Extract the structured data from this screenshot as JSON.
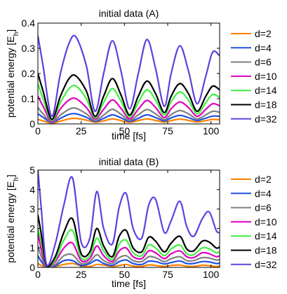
{
  "chart_data": [
    {
      "type": "line",
      "title": "initial data (A)",
      "xlabel": "time [fs]",
      "ylabel": "potential energy [E_h]",
      "xlim": [
        0,
        105
      ],
      "ylim": [
        0,
        0.4
      ],
      "xticks": [
        0,
        25,
        50,
        75,
        100
      ],
      "yticks": [
        0,
        0.1,
        0.2,
        0.3,
        0.4
      ],
      "ytick_labels": [
        "0",
        "0.1",
        "0.2",
        "0.3",
        "0.4"
      ],
      "grid": false,
      "legend_position": "right",
      "series": [
        {
          "name": "d=2",
          "color": "#ff8000",
          "x": [
            0,
            3,
            8,
            13,
            18,
            22,
            28,
            33,
            38,
            43,
            48,
            53,
            58,
            63,
            68,
            73,
            77,
            82,
            87,
            92,
            97,
            101,
            105
          ],
          "values": [
            0.018,
            0.012,
            0.003,
            0.011,
            0.02,
            0.022,
            0.015,
            0.007,
            0.012,
            0.02,
            0.013,
            0.006,
            0.013,
            0.02,
            0.014,
            0.007,
            0.013,
            0.019,
            0.014,
            0.008,
            0.013,
            0.018,
            0.016
          ]
        },
        {
          "name": "d=4",
          "color": "#2050e0",
          "x": [
            0,
            3,
            8,
            13,
            18,
            22,
            28,
            33,
            38,
            43,
            48,
            53,
            58,
            63,
            68,
            73,
            77,
            82,
            87,
            92,
            97,
            101,
            105
          ],
          "values": [
            0.04,
            0.026,
            0.005,
            0.022,
            0.038,
            0.04,
            0.026,
            0.01,
            0.022,
            0.036,
            0.024,
            0.01,
            0.022,
            0.036,
            0.025,
            0.012,
            0.024,
            0.034,
            0.025,
            0.014,
            0.023,
            0.031,
            0.03
          ]
        },
        {
          "name": "d=6",
          "color": "#808080",
          "x": [
            0,
            3,
            8,
            13,
            18,
            22,
            28,
            33,
            38,
            43,
            48,
            53,
            58,
            63,
            68,
            73,
            77,
            82,
            87,
            92,
            97,
            101,
            105
          ],
          "values": [
            0.065,
            0.04,
            0.007,
            0.035,
            0.058,
            0.062,
            0.04,
            0.013,
            0.035,
            0.058,
            0.038,
            0.014,
            0.036,
            0.057,
            0.04,
            0.017,
            0.037,
            0.053,
            0.04,
            0.02,
            0.036,
            0.05,
            0.046
          ]
        },
        {
          "name": "d=10",
          "color": "#e000c0",
          "x": [
            0,
            3,
            8,
            13,
            18,
            22,
            28,
            33,
            38,
            43,
            48,
            53,
            58,
            63,
            68,
            73,
            77,
            82,
            87,
            92,
            97,
            101,
            105
          ],
          "values": [
            0.11,
            0.07,
            0.01,
            0.06,
            0.095,
            0.1,
            0.065,
            0.02,
            0.058,
            0.095,
            0.062,
            0.02,
            0.058,
            0.093,
            0.065,
            0.025,
            0.06,
            0.087,
            0.065,
            0.03,
            0.058,
            0.08,
            0.072
          ]
        },
        {
          "name": "d=14",
          "color": "#40f040",
          "x": [
            0,
            3,
            8,
            13,
            18,
            22,
            28,
            33,
            38,
            43,
            48,
            53,
            58,
            63,
            68,
            73,
            77,
            82,
            87,
            92,
            97,
            101,
            105
          ],
          "values": [
            0.16,
            0.1,
            0.014,
            0.085,
            0.14,
            0.15,
            0.1,
            0.025,
            0.085,
            0.14,
            0.09,
            0.028,
            0.085,
            0.135,
            0.095,
            0.035,
            0.088,
            0.127,
            0.094,
            0.04,
            0.085,
            0.117,
            0.105
          ]
        },
        {
          "name": "d=18",
          "color": "#000000",
          "x": [
            0,
            3,
            8,
            13,
            18,
            22,
            28,
            33,
            38,
            43,
            48,
            53,
            58,
            63,
            68,
            73,
            77,
            82,
            87,
            92,
            97,
            101,
            105
          ],
          "values": [
            0.2,
            0.13,
            0.018,
            0.11,
            0.18,
            0.19,
            0.13,
            0.03,
            0.11,
            0.18,
            0.115,
            0.035,
            0.11,
            0.17,
            0.12,
            0.045,
            0.11,
            0.16,
            0.12,
            0.05,
            0.11,
            0.15,
            0.135
          ]
        },
        {
          "name": "d=32",
          "color": "#6040e0",
          "x": [
            0,
            3,
            8,
            13,
            18,
            22,
            28,
            33,
            38,
            43,
            48,
            53,
            58,
            63,
            68,
            73,
            77,
            82,
            87,
            92,
            97,
            101,
            105
          ],
          "values": [
            0.35,
            0.23,
            0.03,
            0.2,
            0.32,
            0.345,
            0.23,
            0.05,
            0.2,
            0.33,
            0.21,
            0.06,
            0.2,
            0.335,
            0.22,
            0.07,
            0.2,
            0.31,
            0.21,
            0.08,
            0.19,
            0.285,
            0.27
          ]
        }
      ]
    },
    {
      "type": "line",
      "title": "initial data (B)",
      "xlabel": "time [fs]",
      "ylabel": "potential energy [E_h]",
      "xlim": [
        0,
        105
      ],
      "ylim": [
        0,
        5
      ],
      "xticks": [
        0,
        25,
        50,
        75,
        100
      ],
      "yticks": [
        0,
        1,
        2,
        3,
        4,
        5
      ],
      "ytick_labels": [
        "0",
        "1",
        "2",
        "3",
        "4",
        "5"
      ],
      "grid": false,
      "legend_position": "right",
      "series": [
        {
          "name": "d=2",
          "color": "#ff8000",
          "x": [
            0,
            2,
            5,
            10,
            15,
            20,
            25,
            30,
            34,
            38,
            43,
            47,
            51,
            55,
            60,
            64,
            68,
            73,
            77,
            82,
            86,
            90,
            95,
            99,
            103,
            105
          ],
          "values": [
            0.2,
            0.1,
            0.02,
            0.05,
            0.15,
            0.2,
            0.08,
            0.05,
            0.15,
            0.12,
            0.05,
            0.1,
            0.15,
            0.07,
            0.05,
            0.13,
            0.1,
            0.05,
            0.1,
            0.12,
            0.06,
            0.05,
            0.11,
            0.09,
            0.05,
            0.06
          ]
        },
        {
          "name": "d=4",
          "color": "#2050e0",
          "x": [
            0,
            2,
            5,
            10,
            15,
            20,
            25,
            30,
            34,
            38,
            43,
            47,
            51,
            55,
            60,
            64,
            68,
            73,
            77,
            82,
            86,
            90,
            95,
            99,
            103,
            105
          ],
          "values": [
            0.6,
            0.3,
            0.02,
            0.08,
            0.35,
            0.35,
            0.1,
            0.2,
            0.38,
            0.2,
            0.1,
            0.3,
            0.38,
            0.2,
            0.15,
            0.32,
            0.3,
            0.18,
            0.25,
            0.33,
            0.2,
            0.2,
            0.3,
            0.28,
            0.2,
            0.22
          ]
        },
        {
          "name": "d=6",
          "color": "#808080",
          "x": [
            0,
            2,
            5,
            10,
            15,
            20,
            25,
            30,
            34,
            38,
            43,
            47,
            51,
            55,
            60,
            64,
            68,
            73,
            77,
            82,
            86,
            90,
            95,
            99,
            103,
            105
          ],
          "values": [
            1.1,
            0.55,
            0.03,
            0.15,
            0.6,
            0.65,
            0.2,
            0.3,
            0.65,
            0.35,
            0.2,
            0.5,
            0.6,
            0.35,
            0.3,
            0.55,
            0.5,
            0.3,
            0.45,
            0.55,
            0.35,
            0.35,
            0.5,
            0.48,
            0.38,
            0.4
          ]
        },
        {
          "name": "d=10",
          "color": "#e000c0",
          "x": [
            0,
            2,
            5,
            10,
            15,
            20,
            25,
            30,
            34,
            38,
            43,
            47,
            51,
            55,
            60,
            64,
            68,
            73,
            77,
            82,
            86,
            90,
            95,
            99,
            103,
            105
          ],
          "values": [
            1.8,
            0.9,
            0.05,
            0.3,
            1.0,
            1.25,
            0.35,
            0.45,
            1.1,
            0.6,
            0.3,
            0.85,
            1.0,
            0.55,
            0.45,
            0.85,
            0.75,
            0.45,
            0.7,
            0.85,
            0.55,
            0.5,
            0.75,
            0.7,
            0.55,
            0.6
          ]
        },
        {
          "name": "d=14",
          "color": "#40f040",
          "x": [
            0,
            2,
            5,
            10,
            15,
            20,
            25,
            30,
            34,
            38,
            43,
            47,
            51,
            55,
            60,
            64,
            68,
            73,
            77,
            82,
            86,
            90,
            95,
            99,
            103,
            105
          ],
          "values": [
            2.0,
            1.3,
            0.08,
            0.4,
            1.4,
            1.9,
            0.5,
            0.6,
            1.5,
            0.85,
            0.4,
            1.2,
            1.4,
            0.75,
            0.6,
            1.15,
            1.0,
            0.6,
            0.95,
            1.15,
            0.7,
            0.65,
            1.0,
            0.95,
            0.75,
            0.8
          ]
        },
        {
          "name": "d=18",
          "color": "#000000",
          "x": [
            0,
            2,
            5,
            10,
            15,
            20,
            25,
            30,
            34,
            38,
            43,
            47,
            51,
            55,
            60,
            64,
            68,
            73,
            77,
            82,
            86,
            90,
            95,
            99,
            103,
            105
          ],
          "values": [
            2.7,
            1.7,
            0.1,
            0.55,
            1.8,
            2.5,
            0.7,
            0.8,
            2.0,
            1.1,
            0.55,
            1.6,
            1.9,
            1.0,
            0.8,
            1.55,
            1.35,
            0.8,
            1.25,
            1.6,
            0.95,
            0.85,
            1.35,
            1.3,
            1.0,
            1.05
          ]
        },
        {
          "name": "d=32",
          "color": "#6040e0",
          "x": [
            0,
            2,
            5,
            10,
            15,
            20,
            25,
            30,
            34,
            38,
            43,
            47,
            51,
            55,
            60,
            64,
            68,
            73,
            77,
            82,
            86,
            90,
            95,
            99,
            103,
            105
          ],
          "values": [
            5.0,
            3.0,
            0.15,
            1.2,
            3.2,
            4.6,
            1.3,
            1.5,
            3.9,
            2.0,
            1.2,
            3.1,
            3.8,
            2.0,
            1.5,
            3.2,
            3.5,
            1.8,
            2.4,
            3.4,
            2.1,
            1.6,
            2.5,
            2.85,
            1.9,
            1.8
          ]
        }
      ]
    }
  ]
}
